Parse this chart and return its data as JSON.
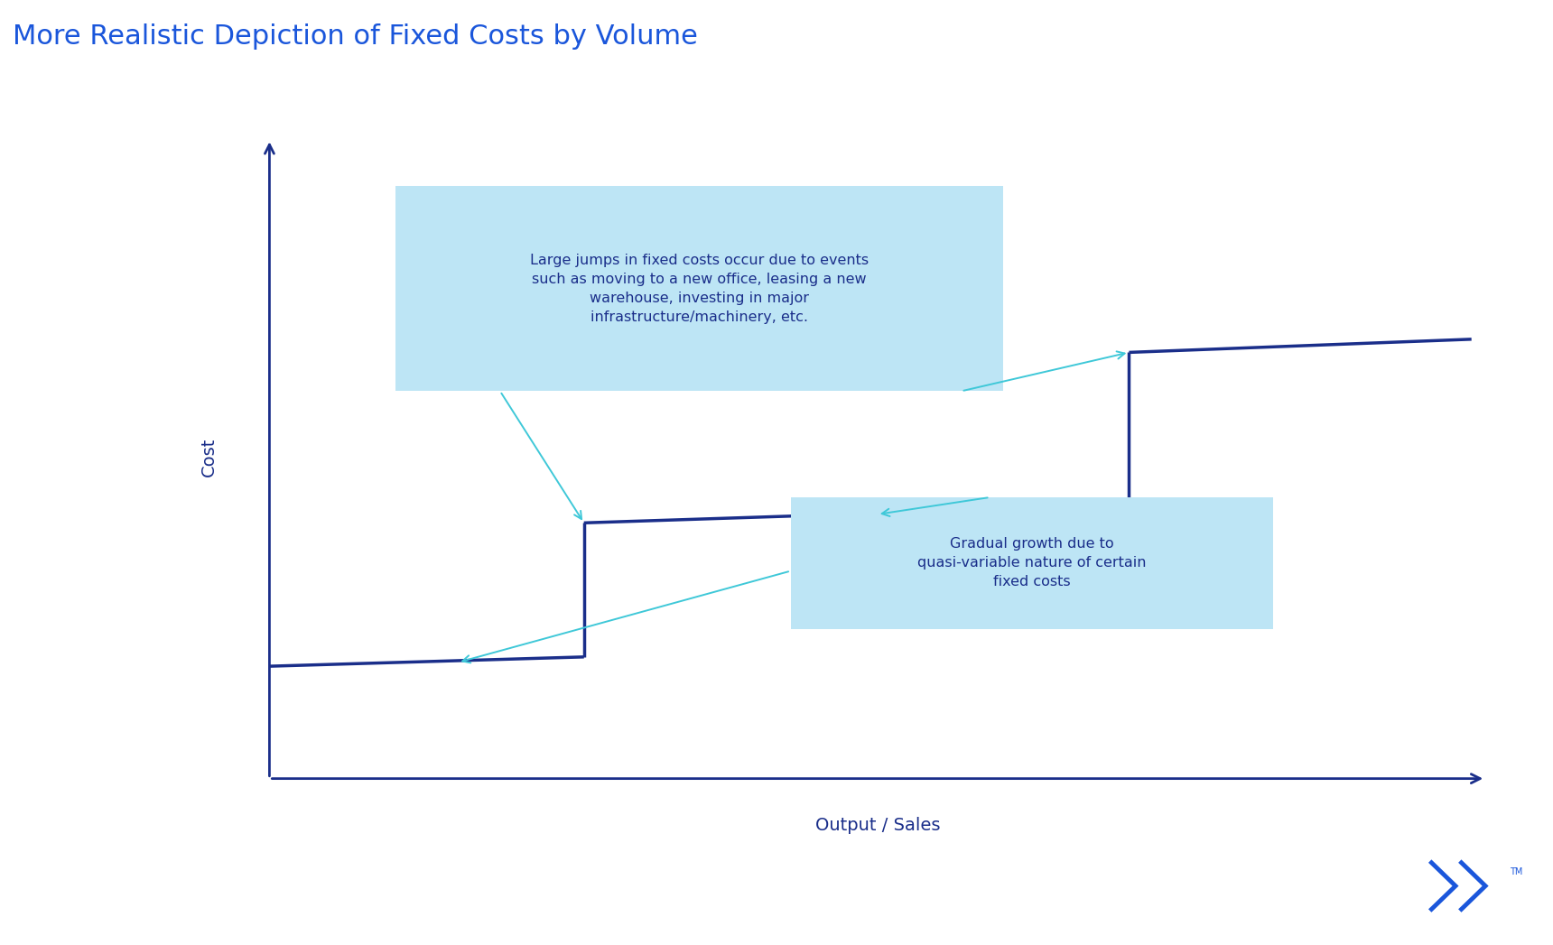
{
  "title": "More Realistic Depiction of Fixed Costs by Volume",
  "title_color": "#1a56db",
  "title_fontsize": 22,
  "xlabel": "Output / Sales",
  "ylabel": "Cost",
  "axis_color": "#1a2e8a",
  "label_color": "#1a2e8a",
  "line_color": "#1a2e8a",
  "arrow_color": "#3fc8d8",
  "box_bg_color": "#bde5f5",
  "box_text_color": "#1a2e8a",
  "annotation1_text": "Large jumps in fixed costs occur due to events\nsuch as moving to a new office, leasing a new\nwarehouse, investing in major\ninfrastructure/machinery, etc.",
  "annotation2_text": "Gradual growth due to\nquasi-variable nature of certain\nfixed costs",
  "logo_color": "#1a56db",
  "line_lw": 2.5,
  "axis_lw": 2.0
}
